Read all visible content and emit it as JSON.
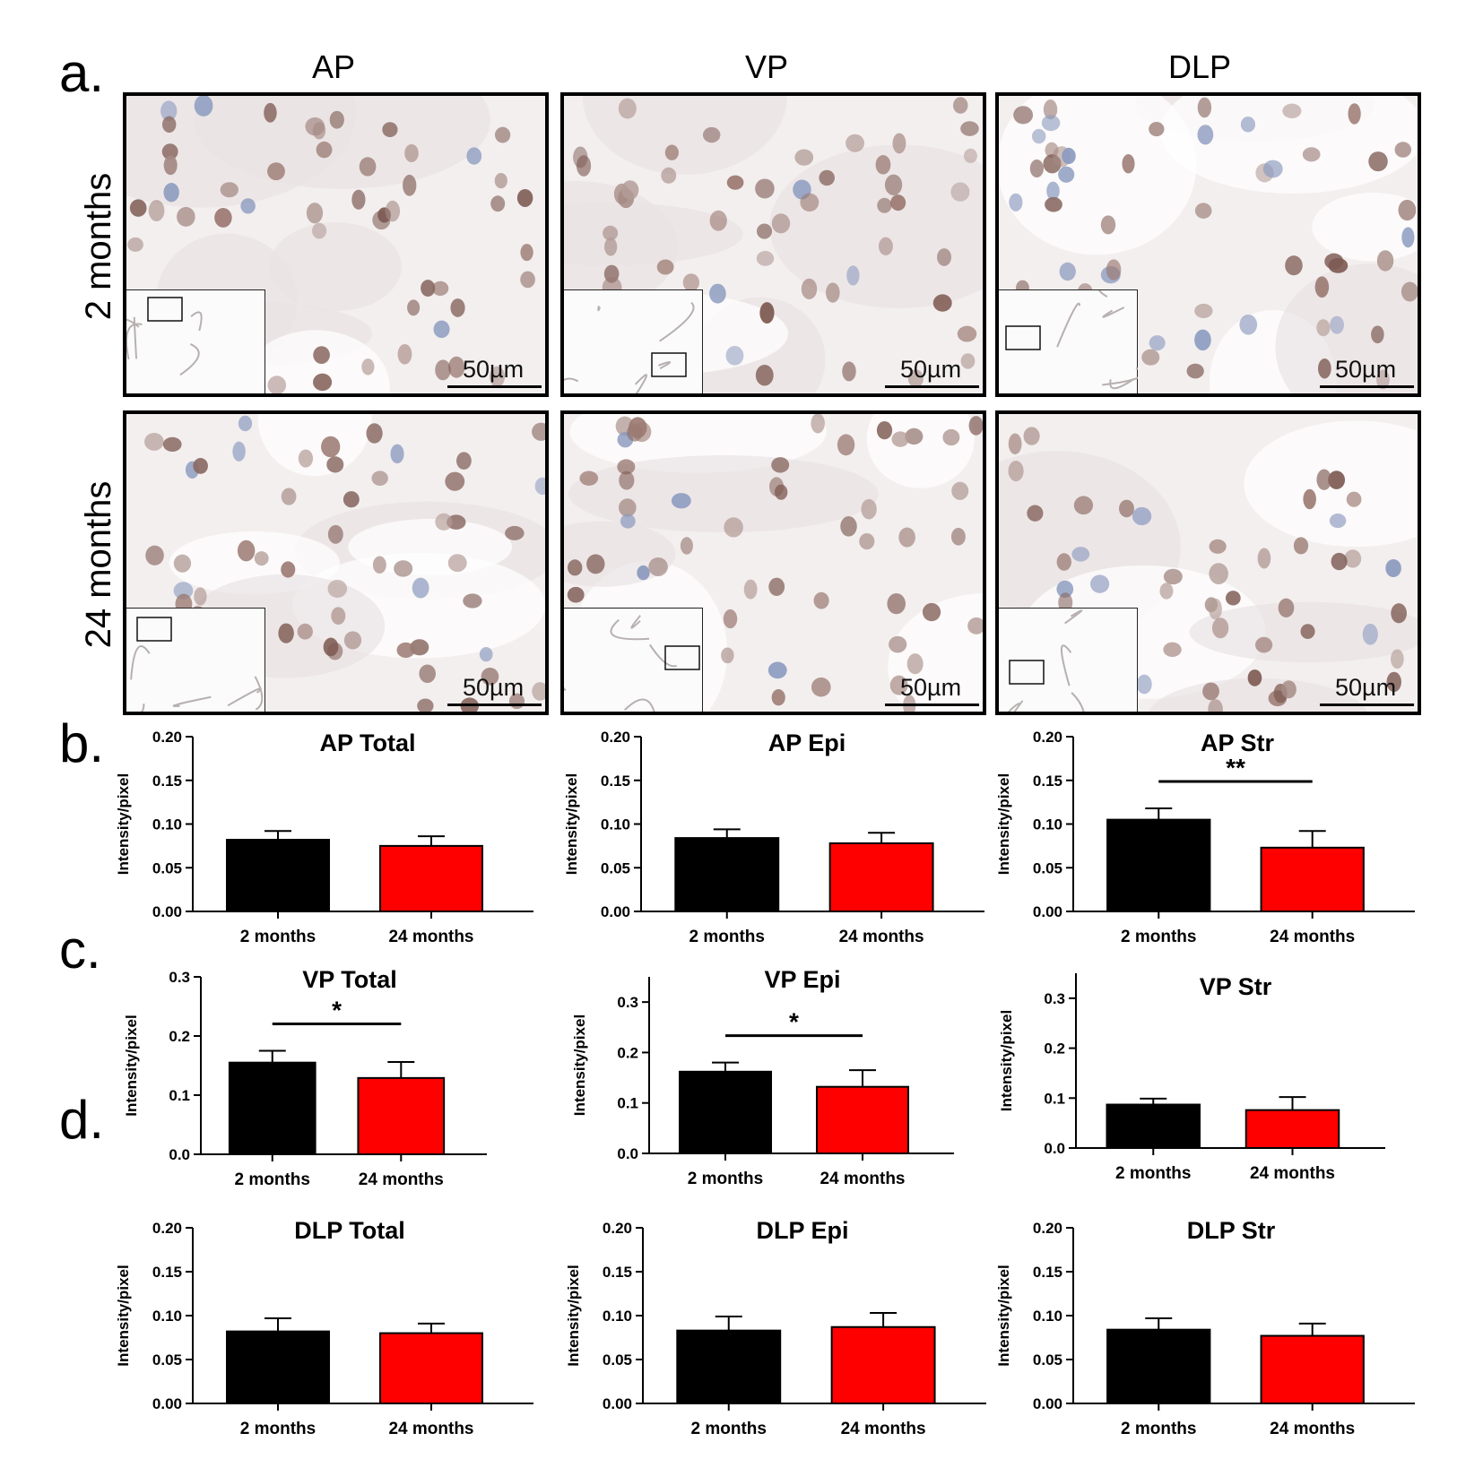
{
  "panel_letters": {
    "a": "a.",
    "b": "b.",
    "c": "c.",
    "d": "d."
  },
  "columns": [
    "AP",
    "VP",
    "DLP"
  ],
  "rows": [
    "2 months",
    "24 months"
  ],
  "scale_bar_label": "50µm",
  "colors": {
    "group1": "#000000",
    "group2": "#ff0000",
    "tile_bg": "#f3efef",
    "nucleus": "#8a6a63"
  },
  "chart_data": [
    {
      "type": "bar",
      "title": "AP Total",
      "ylabel": "Intensity/pixel",
      "categories": [
        "2 months",
        "24 months"
      ],
      "values": [
        0.082,
        0.075
      ],
      "errors": [
        0.01,
        0.011
      ],
      "ylim": [
        0,
        0.2
      ],
      "yticks": [
        "0.00",
        "0.05",
        "0.10",
        "0.15",
        "0.20"
      ],
      "colors": [
        "#000000",
        "#ff0000"
      ],
      "significance": ""
    },
    {
      "type": "bar",
      "title": "AP Epi",
      "ylabel": "Intensity/pixel",
      "categories": [
        "2 months",
        "24 months"
      ],
      "values": [
        0.084,
        0.078
      ],
      "errors": [
        0.01,
        0.012
      ],
      "ylim": [
        0,
        0.2
      ],
      "yticks": [
        "0.00",
        "0.05",
        "0.10",
        "0.15",
        "0.20"
      ],
      "colors": [
        "#000000",
        "#ff0000"
      ],
      "significance": ""
    },
    {
      "type": "bar",
      "title": "AP Str",
      "ylabel": "Intensity/pixel",
      "categories": [
        "2 months",
        "24 months"
      ],
      "values": [
        0.105,
        0.073
      ],
      "errors": [
        0.013,
        0.019
      ],
      "ylim": [
        0,
        0.2
      ],
      "yticks": [
        "0.00",
        "0.05",
        "0.10",
        "0.15",
        "0.20"
      ],
      "colors": [
        "#000000",
        "#ff0000"
      ],
      "significance": "**"
    },
    {
      "type": "bar",
      "title": "VP Total",
      "ylabel": "Intensity/pixel",
      "categories": [
        "2 months",
        "24 months"
      ],
      "values": [
        0.155,
        0.129
      ],
      "errors": [
        0.02,
        0.027
      ],
      "ylim": [
        0,
        0.3
      ],
      "yticks": [
        "0.0",
        "0.1",
        "0.2",
        "0.3"
      ],
      "colors": [
        "#000000",
        "#ff0000"
      ],
      "significance": "*"
    },
    {
      "type": "bar",
      "title": "VP Epi",
      "ylabel": "Intensity/pixel",
      "categories": [
        "2 months",
        "24 months"
      ],
      "values": [
        0.162,
        0.132
      ],
      "errors": [
        0.018,
        0.033
      ],
      "ylim": [
        0,
        0.35
      ],
      "yticks": [
        "0.0",
        "0.1",
        "0.2",
        "0.3"
      ],
      "colors": [
        "#000000",
        "#ff0000"
      ],
      "significance": "*"
    },
    {
      "type": "bar",
      "title": "VP Str",
      "ylabel": "Intensity/pixel",
      "categories": [
        "2 months",
        "24 months"
      ],
      "values": [
        0.087,
        0.076
      ],
      "errors": [
        0.012,
        0.026
      ],
      "ylim": [
        0,
        0.35
      ],
      "yticks": [
        "0.0",
        "0.1",
        "0.2",
        "0.3"
      ],
      "colors": [
        "#000000",
        "#ff0000"
      ],
      "significance": ""
    },
    {
      "type": "bar",
      "title": "DLP Total",
      "ylabel": "Intensity/pixel",
      "categories": [
        "2 months",
        "24 months"
      ],
      "values": [
        0.082,
        0.08
      ],
      "errors": [
        0.015,
        0.011
      ],
      "ylim": [
        0,
        0.2
      ],
      "yticks": [
        "0.00",
        "0.05",
        "0.10",
        "0.15",
        "0.20"
      ],
      "colors": [
        "#000000",
        "#ff0000"
      ],
      "significance": ""
    },
    {
      "type": "bar",
      "title": "DLP Epi",
      "ylabel": "Intensity/pixel",
      "categories": [
        "2 months",
        "24 months"
      ],
      "values": [
        0.083,
        0.087
      ],
      "errors": [
        0.016,
        0.016
      ],
      "ylim": [
        0,
        0.2
      ],
      "yticks": [
        "0.00",
        "0.05",
        "0.10",
        "0.15",
        "0.20"
      ],
      "colors": [
        "#000000",
        "#ff0000"
      ],
      "significance": ""
    },
    {
      "type": "bar",
      "title": "DLP Str",
      "ylabel": "Intensity/pixel",
      "categories": [
        "2 months",
        "24 months"
      ],
      "values": [
        0.084,
        0.077
      ],
      "errors": [
        0.013,
        0.014
      ],
      "ylim": [
        0,
        0.2
      ],
      "yticks": [
        "0.00",
        "0.05",
        "0.10",
        "0.15",
        "0.20"
      ],
      "colors": [
        "#000000",
        "#ff0000"
      ],
      "significance": ""
    }
  ]
}
